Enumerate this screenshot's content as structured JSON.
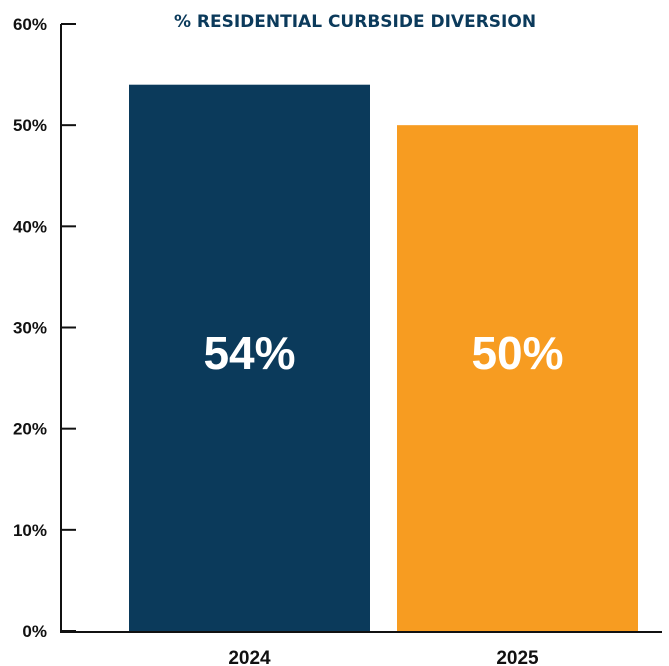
{
  "chart_data": {
    "type": "bar",
    "title": "% RESIDENTIAL CURBSIDE DIVERSION",
    "xlabel": "",
    "ylabel": "",
    "categories": [
      "2024",
      "2025"
    ],
    "values": [
      54,
      50
    ],
    "data_labels": [
      "54%",
      "50%"
    ],
    "ylim": [
      0,
      60
    ],
    "yticks": [
      0,
      10,
      20,
      30,
      40,
      50,
      60
    ],
    "ytick_labels": [
      "0%",
      "10%",
      "20%",
      "30%",
      "40%",
      "50%",
      "60%"
    ],
    "bar_colors": [
      "#0b3a5b",
      "#f79c21"
    ],
    "grid": false,
    "legend": "none"
  }
}
